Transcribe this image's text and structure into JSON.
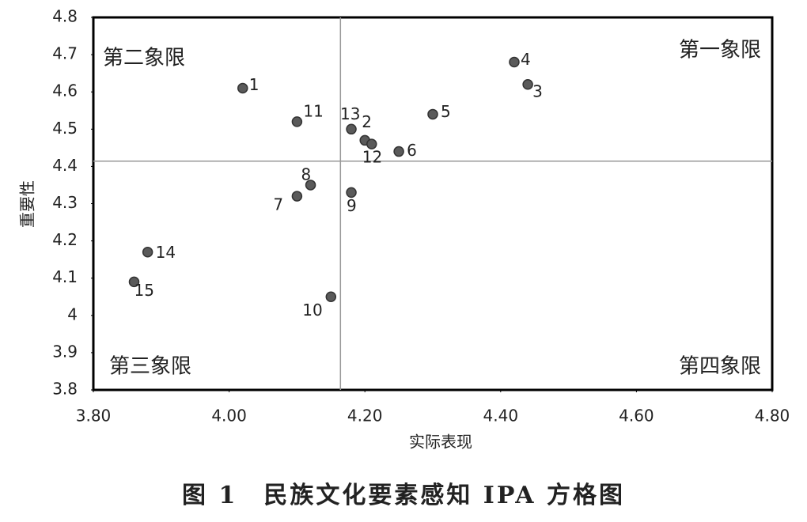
{
  "chart_data": {
    "type": "scatter",
    "x_label": "实际表现",
    "y_label": "重要性",
    "caption": "图 1　民族文化要素感知 IPA 方格图",
    "quadrant_labels": [
      "第一象限",
      "第二象限",
      "第三象限",
      "第四象限"
    ],
    "quadrant_lines": {
      "x": 4.164,
      "y": 4.414
    },
    "color": "#5a5a5a",
    "labels": [
      "1",
      "11",
      "13",
      "2",
      "12",
      "6",
      "5",
      "4",
      "3",
      "8",
      "7",
      "9",
      "14",
      "15",
      "10"
    ],
    "x": [
      4.02,
      4.1,
      4.18,
      4.2,
      4.21,
      4.25,
      4.3,
      4.42,
      4.44,
      4.12,
      4.1,
      4.18,
      3.88,
      3.86,
      4.15
    ],
    "values": [
      4.61,
      4.52,
      4.5,
      4.47,
      4.46,
      4.44,
      4.54,
      4.68,
      4.62,
      4.35,
      4.32,
      4.33,
      4.17,
      4.09,
      4.05
    ],
    "xlim": [
      3.8,
      4.8
    ],
    "xticks": [
      {
        "value": 3.8,
        "label": "3.80"
      },
      {
        "value": 4.0,
        "label": "4.00"
      },
      {
        "value": 4.2,
        "label": "4.20"
      },
      {
        "value": 4.4,
        "label": "4.40"
      },
      {
        "value": 4.6,
        "label": "4.60"
      },
      {
        "value": 4.8,
        "label": "4.80"
      }
    ],
    "ylim": [
      3.8,
      4.8
    ],
    "yticks": [
      3.8,
      3.9,
      4,
      4.1,
      4.2,
      4.3,
      4.4,
      4.5,
      4.6,
      4.7,
      4.8
    ]
  }
}
